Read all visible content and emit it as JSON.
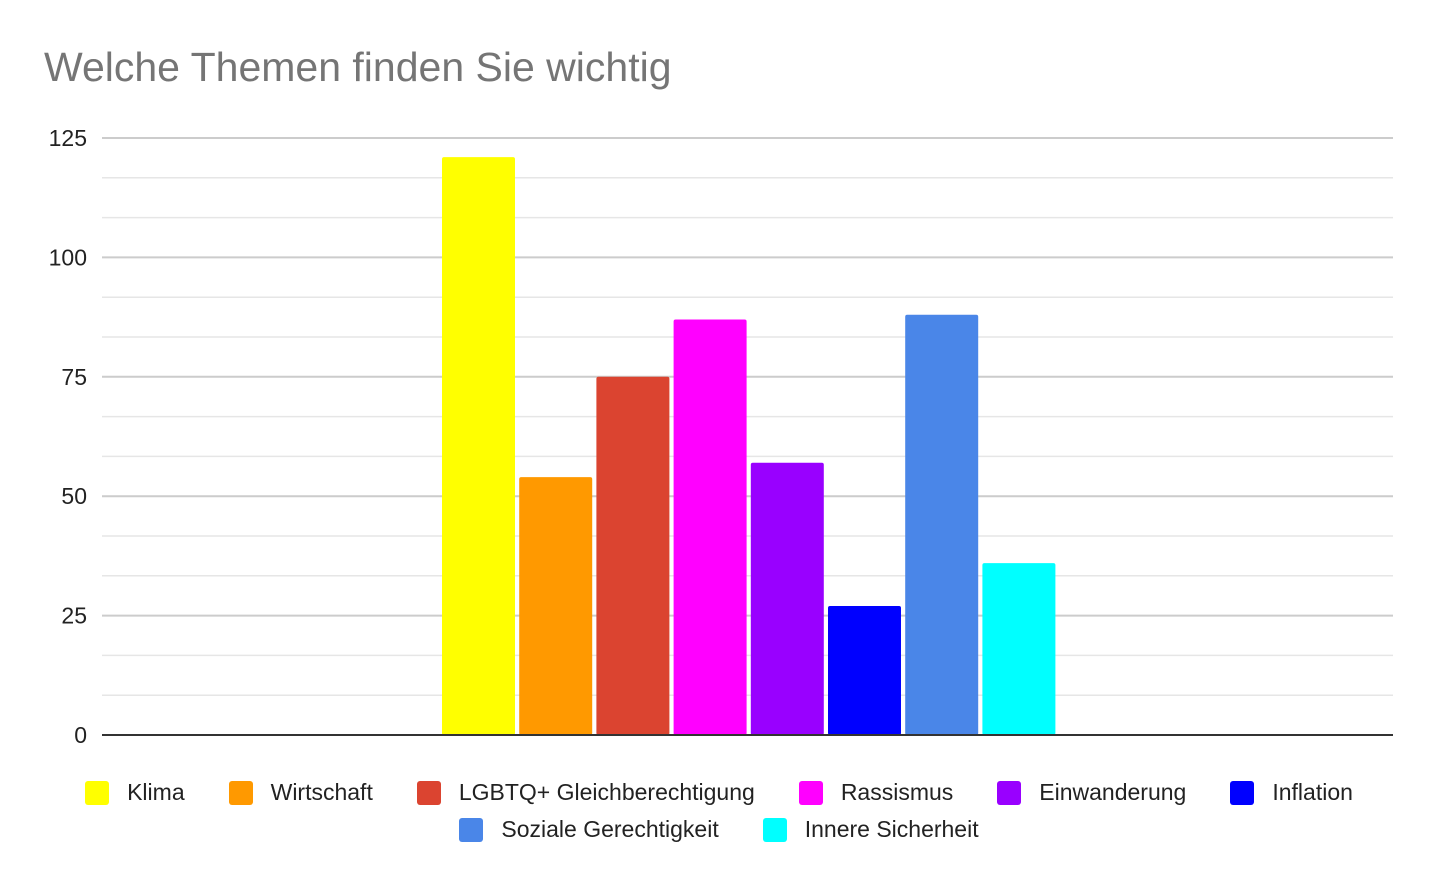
{
  "chart_data": {
    "type": "bar",
    "title": "Welche Themen finden Sie wichtig",
    "xlabel": "",
    "ylabel": "",
    "ylim": [
      0,
      125
    ],
    "yticks": [
      "0",
      "25",
      "50",
      "75",
      "100",
      "125"
    ],
    "grid": true,
    "legend_position": "bottom",
    "series": [
      {
        "name": "Klima",
        "value": 121,
        "color": "#ffff00"
      },
      {
        "name": "Wirtschaft",
        "value": 54,
        "color": "#ff9900"
      },
      {
        "name": "LGBTQ+ Gleichberechtigung",
        "value": 75,
        "color": "#db4430"
      },
      {
        "name": "Rassismus",
        "value": 87,
        "color": "#ff00ff"
      },
      {
        "name": "Einwanderung",
        "value": 57,
        "color": "#9900ff"
      },
      {
        "name": "Inflation",
        "value": 27,
        "color": "#0000ff"
      },
      {
        "name": "Soziale Gerechtigkeit",
        "value": 88,
        "color": "#4a86e8"
      },
      {
        "name": "Innere Sicherheit",
        "value": 36,
        "color": "#00ffff"
      }
    ]
  }
}
